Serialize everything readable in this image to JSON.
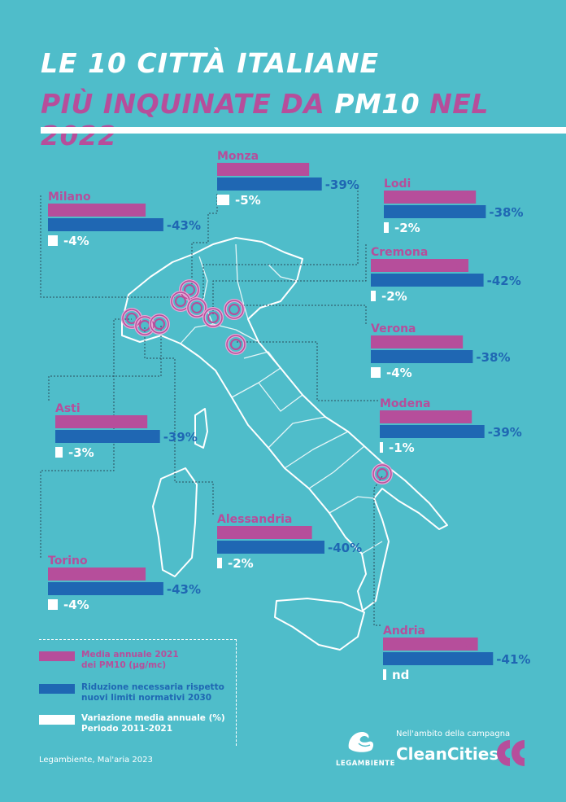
{
  "title_line1": "LE 10 CITTÀ ITALIANE",
  "title_line2_a": "PIÙ INQUINATE DA ",
  "title_line2_b": "PM10",
  "title_line2_c": " NEL 2022",
  "colors": {
    "media": "#b64e9b",
    "riduzione": "#1f67b3",
    "variazione": "#ffffff",
    "background": "#4fbdca"
  },
  "chart_data": {
    "type": "bar",
    "categories": [
      "Monza",
      "Milano",
      "Lodi",
      "Cremona",
      "Verona",
      "Modena",
      "Asti",
      "Alessandria",
      "Torino",
      "Andria"
    ],
    "series": [
      {
        "name": "Media annuale 2021 dei PM10 (µg/mc)",
        "values": [
          33,
          35,
          33,
          35,
          33,
          33,
          33,
          34,
          35,
          34
        ]
      },
      {
        "name": "Riduzione necessaria rispetto nuovi limiti normativi 2030",
        "values": [
          -39,
          -43,
          -38,
          -42,
          -38,
          -39,
          -39,
          -40,
          -43,
          -41
        ]
      },
      {
        "name": "Variazione media annuale (%) Periodo 2011-2021",
        "values": [
          -5,
          -4,
          -2,
          -2,
          -4,
          -1,
          -3,
          -2,
          -4,
          null
        ]
      }
    ],
    "cities": [
      {
        "name": "Monza",
        "media": "33",
        "riduzione": "-39%",
        "variazione": "-5%",
        "var": -5
      },
      {
        "name": "Milano",
        "media": "35",
        "riduzione": "-43%",
        "variazione": "-4%",
        "var": -4
      },
      {
        "name": "Lodi",
        "media": "33",
        "riduzione": "-38%",
        "variazione": "-2%",
        "var": -2
      },
      {
        "name": "Cremona",
        "media": "35",
        "riduzione": "-42%",
        "variazione": "-2%",
        "var": -2
      },
      {
        "name": "Verona",
        "media": "33",
        "riduzione": "-38%",
        "variazione": "-4%",
        "var": -4
      },
      {
        "name": "Modena",
        "media": "33",
        "riduzione": "-39%",
        "variazione": "-1%",
        "var": -1
      },
      {
        "name": "Asti",
        "media": "33",
        "riduzione": "-39%",
        "variazione": "-3%",
        "var": -3
      },
      {
        "name": "Alessandria",
        "media": "34",
        "riduzione": "-40%",
        "variazione": "-2%",
        "var": -2
      },
      {
        "name": "Torino",
        "media": "35",
        "riduzione": "-43%",
        "variazione": "-4%",
        "var": -4
      },
      {
        "name": "Andria",
        "media": "34",
        "riduzione": "-41%",
        "variazione": "nd",
        "var": 0
      }
    ]
  },
  "legend": {
    "media_line1": "Media annuale 2021",
    "media_line2": "dei PM10 (µg/mc)",
    "riduzione_line1": "Riduzione necessaria rispetto",
    "riduzione_line2": "nuovi limiti normativi 2030",
    "variazione_line1": "Variazione media annuale (%)",
    "variazione_line2": "Periodo 2011-2021"
  },
  "footer": {
    "source": "Legambiente, Mal'aria 2023",
    "logo_text": "LEGAMBIENTE",
    "campaign_label": "Nell'ambito della campagna",
    "campaign_name": "CleanCities"
  }
}
